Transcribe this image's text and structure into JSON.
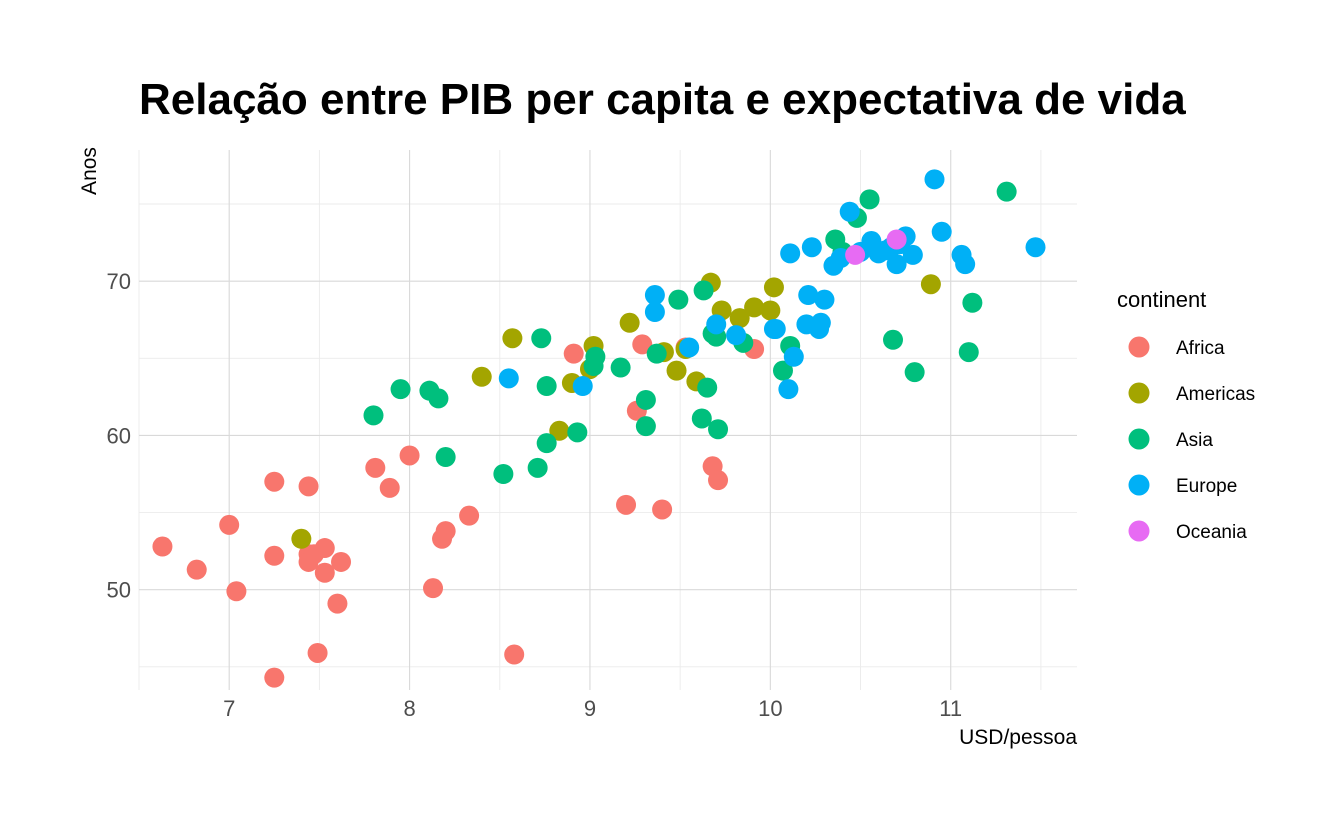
{
  "chart_data": {
    "type": "scatter",
    "title": "Relação entre PIB per capita e expectativa de vida",
    "xlabel": "USD/pessoa",
    "ylabel": "Anos",
    "xlim": [
      6.5,
      11.7
    ],
    "ylim": [
      43.5,
      78.5
    ],
    "x_ticks": [
      7,
      8,
      9,
      10,
      11
    ],
    "y_ticks": [
      50,
      60,
      70
    ],
    "grid": true,
    "legend_position": "right",
    "legend_title": "continent",
    "series": [
      {
        "name": "Africa",
        "color": "#F8766D",
        "points": [
          [
            6.63,
            52.8
          ],
          [
            6.82,
            51.3
          ],
          [
            7.0,
            54.2
          ],
          [
            7.04,
            49.9
          ],
          [
            7.25,
            57.0
          ],
          [
            7.25,
            52.2
          ],
          [
            7.25,
            44.3
          ],
          [
            7.44,
            56.7
          ],
          [
            7.44,
            52.3
          ],
          [
            7.44,
            51.8
          ],
          [
            7.47,
            52.3
          ],
          [
            7.49,
            45.9
          ],
          [
            7.53,
            52.7
          ],
          [
            7.53,
            51.1
          ],
          [
            7.6,
            49.1
          ],
          [
            7.62,
            51.8
          ],
          [
            7.81,
            57.9
          ],
          [
            7.89,
            56.6
          ],
          [
            8.0,
            58.7
          ],
          [
            8.13,
            50.1
          ],
          [
            8.18,
            53.3
          ],
          [
            8.2,
            53.8
          ],
          [
            8.33,
            54.8
          ],
          [
            8.58,
            45.8
          ],
          [
            8.91,
            65.3
          ],
          [
            9.2,
            55.5
          ],
          [
            9.26,
            61.6
          ],
          [
            9.29,
            65.9
          ],
          [
            9.4,
            55.2
          ],
          [
            9.53,
            65.7
          ],
          [
            9.68,
            58.0
          ],
          [
            9.71,
            57.1
          ],
          [
            9.91,
            65.6
          ]
        ]
      },
      {
        "name": "Americas",
        "color": "#A3A500",
        "points": [
          [
            7.4,
            53.3
          ],
          [
            8.4,
            63.8
          ],
          [
            8.57,
            66.3
          ],
          [
            8.83,
            60.3
          ],
          [
            8.9,
            63.4
          ],
          [
            9.0,
            64.3
          ],
          [
            9.02,
            65.8
          ],
          [
            9.22,
            67.3
          ],
          [
            9.41,
            65.4
          ],
          [
            9.48,
            64.2
          ],
          [
            9.53,
            65.6
          ],
          [
            9.59,
            63.5
          ],
          [
            9.67,
            69.9
          ],
          [
            9.73,
            68.1
          ],
          [
            9.83,
            67.6
          ],
          [
            9.91,
            68.3
          ],
          [
            10.0,
            68.1
          ],
          [
            10.02,
            69.6
          ],
          [
            10.89,
            69.8
          ]
        ]
      },
      {
        "name": "Asia",
        "color": "#00BF7D",
        "points": [
          [
            7.8,
            61.3
          ],
          [
            7.95,
            63.0
          ],
          [
            8.11,
            62.9
          ],
          [
            8.16,
            62.4
          ],
          [
            8.2,
            58.6
          ],
          [
            8.52,
            57.5
          ],
          [
            8.71,
            57.9
          ],
          [
            8.73,
            66.3
          ],
          [
            8.76,
            59.5
          ],
          [
            8.76,
            63.2
          ],
          [
            8.93,
            60.2
          ],
          [
            9.02,
            64.5
          ],
          [
            9.03,
            65.1
          ],
          [
            9.17,
            64.4
          ],
          [
            9.31,
            62.3
          ],
          [
            9.31,
            60.6
          ],
          [
            9.37,
            65.3
          ],
          [
            9.49,
            68.8
          ],
          [
            9.62,
            61.1
          ],
          [
            9.63,
            69.4
          ],
          [
            9.65,
            63.1
          ],
          [
            9.68,
            66.6
          ],
          [
            9.7,
            66.4
          ],
          [
            9.71,
            60.4
          ],
          [
            9.85,
            66.0
          ],
          [
            10.07,
            64.2
          ],
          [
            10.11,
            65.8
          ],
          [
            10.36,
            72.7
          ],
          [
            10.4,
            71.9
          ],
          [
            10.48,
            74.1
          ],
          [
            10.55,
            75.3
          ],
          [
            10.68,
            66.2
          ],
          [
            10.8,
            64.1
          ],
          [
            11.1,
            65.4
          ],
          [
            11.12,
            68.6
          ],
          [
            11.31,
            75.8
          ]
        ]
      },
      {
        "name": "Europe",
        "color": "#00B0F6",
        "points": [
          [
            8.55,
            63.7
          ],
          [
            8.96,
            63.2
          ],
          [
            9.36,
            69.1
          ],
          [
            9.36,
            68.0
          ],
          [
            9.55,
            65.7
          ],
          [
            9.7,
            67.2
          ],
          [
            9.81,
            66.5
          ],
          [
            10.02,
            66.9
          ],
          [
            10.03,
            66.9
          ],
          [
            10.1,
            63.0
          ],
          [
            10.11,
            71.8
          ],
          [
            10.13,
            65.1
          ],
          [
            10.2,
            67.2
          ],
          [
            10.21,
            69.1
          ],
          [
            10.23,
            72.2
          ],
          [
            10.27,
            66.9
          ],
          [
            10.28,
            67.3
          ],
          [
            10.3,
            68.8
          ],
          [
            10.35,
            71.0
          ],
          [
            10.39,
            71.5
          ],
          [
            10.44,
            74.5
          ],
          [
            10.5,
            71.9
          ],
          [
            10.56,
            72.6
          ],
          [
            10.6,
            71.8
          ],
          [
            10.64,
            72.0
          ],
          [
            10.67,
            72.2
          ],
          [
            10.7,
            71.1
          ],
          [
            10.72,
            72.4
          ],
          [
            10.75,
            72.9
          ],
          [
            10.79,
            71.7
          ],
          [
            10.91,
            76.6
          ],
          [
            10.95,
            73.2
          ],
          [
            11.06,
            71.7
          ],
          [
            11.08,
            71.1
          ],
          [
            11.47,
            72.2
          ]
        ]
      },
      {
        "name": "Oceania",
        "color": "#E76BF3",
        "points": [
          [
            10.47,
            71.7
          ],
          [
            10.7,
            72.7
          ]
        ]
      }
    ]
  }
}
